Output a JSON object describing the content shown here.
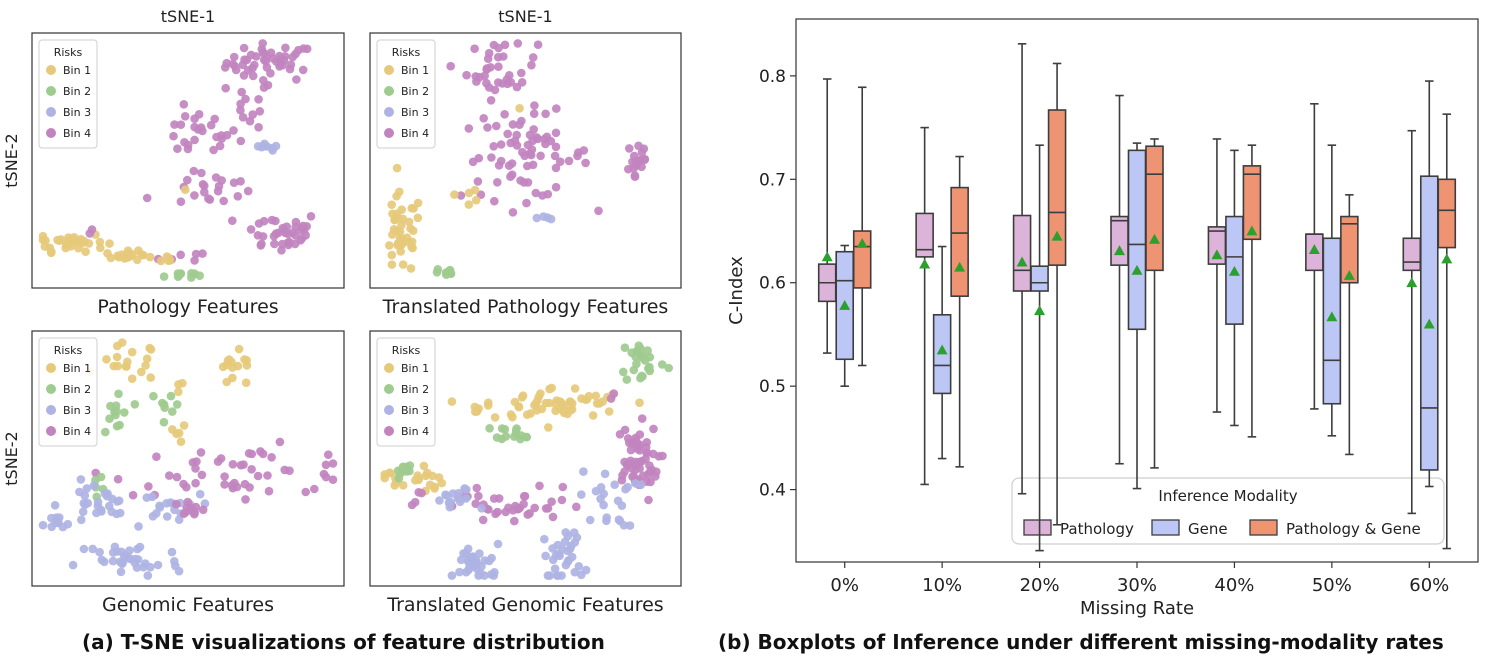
{
  "captions": {
    "left": "(a) T-SNE visualizations of feature distribution",
    "right": "(b) Boxplots of Inference under different missing-modality rates"
  },
  "colors": {
    "bin1": "#e6c97a",
    "bin2": "#9ecb8f",
    "bin3": "#aeb3e3",
    "bin4": "#c184bf",
    "pathology": "#dcb3d9",
    "gene": "#bcc7f5",
    "both": "#ee9473",
    "mean_marker": "#2ca02c",
    "box_edge": "#3d3d3d"
  },
  "chart_data": [
    {
      "type": "scatter",
      "title": "Pathology Features",
      "top_label": "tSNE-1",
      "ylabel": "tSNE-2",
      "legend": {
        "title": "Risks",
        "entries": [
          "Bin 1",
          "Bin 2",
          "Bin 3",
          "Bin 4"
        ],
        "placement": "top-left"
      },
      "clusters": [
        {
          "bin": 4,
          "cx": 0.78,
          "cy": 0.91,
          "sx": 0.075,
          "sy": 0.04,
          "n": 48
        },
        {
          "bin": 4,
          "cx": 0.71,
          "cy": 0.74,
          "sx": 0.04,
          "sy": 0.05,
          "n": 12
        },
        {
          "bin": 4,
          "cx": 0.53,
          "cy": 0.61,
          "sx": 0.07,
          "sy": 0.05,
          "n": 26
        },
        {
          "bin": 3,
          "cx": 0.76,
          "cy": 0.55,
          "sx": 0.025,
          "sy": 0.012,
          "n": 8
        },
        {
          "bin": 4,
          "cx": 0.59,
          "cy": 0.38,
          "sx": 0.06,
          "sy": 0.035,
          "n": 20
        },
        {
          "bin": 1,
          "cx": 0.49,
          "cy": 0.38,
          "sx": 0.01,
          "sy": 0.01,
          "n": 1
        },
        {
          "bin": 4,
          "cx": 0.37,
          "cy": 0.35,
          "sx": 0.005,
          "sy": 0.005,
          "n": 1
        },
        {
          "bin": 4,
          "cx": 0.81,
          "cy": 0.2,
          "sx": 0.07,
          "sy": 0.045,
          "n": 38
        },
        {
          "bin": 4,
          "cx": 0.53,
          "cy": 0.1,
          "sx": 0.06,
          "sy": 0.015,
          "n": 6
        },
        {
          "bin": 1,
          "cx": 0.1,
          "cy": 0.16,
          "sx": 0.06,
          "sy": 0.02,
          "n": 32
        },
        {
          "bin": 4,
          "cx": 0.17,
          "cy": 0.2,
          "sx": 0.01,
          "sy": 0.01,
          "n": 2
        },
        {
          "bin": 1,
          "cx": 0.3,
          "cy": 0.1,
          "sx": 0.04,
          "sy": 0.01,
          "n": 20
        },
        {
          "bin": 1,
          "cx": 0.43,
          "cy": 0.09,
          "sx": 0.012,
          "sy": 0.01,
          "n": 4
        },
        {
          "bin": 2,
          "cx": 0.47,
          "cy": 0.02,
          "sx": 0.025,
          "sy": 0.008,
          "n": 10
        }
      ]
    },
    {
      "type": "scatter",
      "title": "Translated Pathology Features",
      "top_label": "tSNE-1",
      "ylabel": "",
      "legend": {
        "title": "Risks",
        "entries": [
          "Bin 1",
          "Bin 2",
          "Bin 3",
          "Bin 4"
        ],
        "placement": "top-left"
      },
      "clusters": [
        {
          "bin": 4,
          "cx": 0.42,
          "cy": 0.88,
          "sx": 0.06,
          "sy": 0.06,
          "n": 36
        },
        {
          "bin": 1,
          "cx": 0.47,
          "cy": 0.72,
          "sx": 0.01,
          "sy": 0.01,
          "n": 1
        },
        {
          "bin": 4,
          "cx": 0.5,
          "cy": 0.52,
          "sx": 0.11,
          "sy": 0.09,
          "n": 70
        },
        {
          "bin": 4,
          "cx": 0.88,
          "cy": 0.5,
          "sx": 0.02,
          "sy": 0.06,
          "n": 18
        },
        {
          "bin": 1,
          "cx": 0.31,
          "cy": 0.36,
          "sx": 0.025,
          "sy": 0.04,
          "n": 5
        },
        {
          "bin": 3,
          "cx": 0.57,
          "cy": 0.26,
          "sx": 0.015,
          "sy": 0.01,
          "n": 4
        },
        {
          "bin": 1,
          "cx": 0.08,
          "cy": 0.19,
          "sx": 0.035,
          "sy": 0.085,
          "n": 40
        },
        {
          "bin": 2,
          "cx": 0.23,
          "cy": 0.03,
          "sx": 0.02,
          "sy": 0.01,
          "n": 9
        }
      ]
    },
    {
      "type": "scatter",
      "title": "Genomic Features",
      "ylabel": "tSNE-2",
      "legend": {
        "title": "Risks",
        "entries": [
          "Bin 1",
          "Bin 2",
          "Bin 3",
          "Bin 4"
        ],
        "placement": "top-left"
      },
      "clusters": [
        {
          "bin": 1,
          "cx": 0.3,
          "cy": 0.9,
          "sx": 0.05,
          "sy": 0.04,
          "n": 18
        },
        {
          "bin": 1,
          "cx": 0.66,
          "cy": 0.86,
          "sx": 0.04,
          "sy": 0.04,
          "n": 14
        },
        {
          "bin": 1,
          "cx": 0.49,
          "cy": 0.83,
          "sx": 0.01,
          "sy": 0.02,
          "n": 3
        },
        {
          "bin": 2,
          "cx": 0.26,
          "cy": 0.68,
          "sx": 0.025,
          "sy": 0.07,
          "n": 12
        },
        {
          "bin": 2,
          "cx": 0.44,
          "cy": 0.72,
          "sx": 0.02,
          "sy": 0.04,
          "n": 8
        },
        {
          "bin": 1,
          "cx": 0.47,
          "cy": 0.6,
          "sx": 0.015,
          "sy": 0.02,
          "n": 5
        },
        {
          "bin": 4,
          "cx": 0.68,
          "cy": 0.45,
          "sx": 0.22,
          "sy": 0.05,
          "n": 50
        },
        {
          "bin": 2,
          "cx": 0.2,
          "cy": 0.4,
          "sx": 0.015,
          "sy": 0.015,
          "n": 5
        },
        {
          "bin": 3,
          "cx": 0.19,
          "cy": 0.3,
          "sx": 0.06,
          "sy": 0.05,
          "n": 28
        },
        {
          "bin": 3,
          "cx": 0.44,
          "cy": 0.3,
          "sx": 0.05,
          "sy": 0.025,
          "n": 18
        },
        {
          "bin": 4,
          "cx": 0.5,
          "cy": 0.29,
          "sx": 0.04,
          "sy": 0.02,
          "n": 10
        },
        {
          "bin": 3,
          "cx": 0.05,
          "cy": 0.22,
          "sx": 0.03,
          "sy": 0.02,
          "n": 10
        },
        {
          "bin": 3,
          "cx": 0.3,
          "cy": 0.07,
          "sx": 0.09,
          "sy": 0.045,
          "n": 36
        }
      ]
    },
    {
      "type": "scatter",
      "title": "Translated Genomic Features",
      "ylabel": "",
      "legend": {
        "title": "Risks",
        "entries": [
          "Bin 1",
          "Bin 2",
          "Bin 3",
          "Bin 4"
        ],
        "placement": "top-left"
      },
      "clusters": [
        {
          "bin": 2,
          "cx": 0.9,
          "cy": 0.91,
          "sx": 0.04,
          "sy": 0.05,
          "n": 24
        },
        {
          "bin": 1,
          "cx": 0.6,
          "cy": 0.73,
          "sx": 0.12,
          "sy": 0.035,
          "n": 55
        },
        {
          "bin": 4,
          "cx": 0.81,
          "cy": 0.76,
          "sx": 0.008,
          "sy": 0.008,
          "n": 2
        },
        {
          "bin": 1,
          "cx": 0.33,
          "cy": 0.71,
          "sx": 0.02,
          "sy": 0.015,
          "n": 4
        },
        {
          "bin": 2,
          "cx": 0.47,
          "cy": 0.61,
          "sx": 0.035,
          "sy": 0.015,
          "n": 14
        },
        {
          "bin": 4,
          "cx": 0.87,
          "cy": 0.48,
          "sx": 0.04,
          "sy": 0.08,
          "n": 55
        },
        {
          "bin": 3,
          "cx": 0.78,
          "cy": 0.33,
          "sx": 0.05,
          "sy": 0.06,
          "n": 22
        },
        {
          "bin": 1,
          "cx": 0.12,
          "cy": 0.42,
          "sx": 0.05,
          "sy": 0.035,
          "n": 24
        },
        {
          "bin": 2,
          "cx": 0.08,
          "cy": 0.45,
          "sx": 0.02,
          "sy": 0.015,
          "n": 8
        },
        {
          "bin": 4,
          "cx": 0.43,
          "cy": 0.3,
          "sx": 0.14,
          "sy": 0.04,
          "n": 42
        },
        {
          "bin": 3,
          "cx": 0.26,
          "cy": 0.32,
          "sx": 0.04,
          "sy": 0.03,
          "n": 14
        },
        {
          "bin": 3,
          "cx": 0.34,
          "cy": 0.06,
          "sx": 0.04,
          "sy": 0.04,
          "n": 32
        },
        {
          "bin": 3,
          "cx": 0.63,
          "cy": 0.09,
          "sx": 0.035,
          "sy": 0.06,
          "n": 32
        }
      ]
    },
    {
      "type": "box",
      "xlabel": "Missing Rate",
      "ylabel": "C-Index",
      "categories": [
        "0%",
        "10%",
        "20%",
        "30%",
        "40%",
        "50%",
        "60%"
      ],
      "yticks": [
        0.4,
        0.5,
        0.6,
        0.7,
        0.8
      ],
      "ylim": [
        0.33,
        0.855
      ],
      "legend": {
        "title": "Inference Modality",
        "placement": "lower-right"
      },
      "series": [
        {
          "name": "Pathology",
          "boxes": [
            {
              "whislo": 0.532,
              "q1": 0.582,
              "med": 0.6,
              "q3": 0.618,
              "whishi": 0.797,
              "mean": 0.625
            },
            {
              "whislo": 0.405,
              "q1": 0.625,
              "med": 0.632,
              "q3": 0.667,
              "whishi": 0.75,
              "mean": 0.618
            },
            {
              "whislo": 0.396,
              "q1": 0.592,
              "med": 0.612,
              "q3": 0.665,
              "whishi": 0.831,
              "mean": 0.62
            },
            {
              "whislo": 0.425,
              "q1": 0.617,
              "med": 0.66,
              "q3": 0.664,
              "whishi": 0.781,
              "mean": 0.631
            },
            {
              "whislo": 0.475,
              "q1": 0.618,
              "med": 0.65,
              "q3": 0.654,
              "whishi": 0.739,
              "mean": 0.627
            },
            {
              "whislo": 0.478,
              "q1": 0.612,
              "med": 0.647,
              "q3": 0.647,
              "whishi": 0.773,
              "mean": 0.632
            },
            {
              "whislo": 0.377,
              "q1": 0.612,
              "med": 0.62,
              "q3": 0.643,
              "whishi": 0.747,
              "mean": 0.6
            }
          ]
        },
        {
          "name": "Gene",
          "boxes": [
            {
              "whislo": 0.5,
              "q1": 0.526,
              "med": 0.602,
              "q3": 0.63,
              "whishi": 0.636,
              "mean": 0.578
            },
            {
              "whislo": 0.43,
              "q1": 0.493,
              "med": 0.52,
              "q3": 0.569,
              "whishi": 0.635,
              "mean": 0.535
            },
            {
              "whislo": 0.341,
              "q1": 0.592,
              "med": 0.6,
              "q3": 0.616,
              "whishi": 0.733,
              "mean": 0.573
            },
            {
              "whislo": 0.401,
              "q1": 0.555,
              "med": 0.637,
              "q3": 0.728,
              "whishi": 0.735,
              "mean": 0.612
            },
            {
              "whislo": 0.462,
              "q1": 0.56,
              "med": 0.625,
              "q3": 0.664,
              "whishi": 0.728,
              "mean": 0.611
            },
            {
              "whislo": 0.452,
              "q1": 0.483,
              "med": 0.525,
              "q3": 0.643,
              "whishi": 0.733,
              "mean": 0.567
            },
            {
              "whislo": 0.403,
              "q1": 0.419,
              "med": 0.479,
              "q3": 0.703,
              "whishi": 0.795,
              "mean": 0.56
            }
          ]
        },
        {
          "name": "Pathology & Gene",
          "boxes": [
            {
              "whislo": 0.52,
              "q1": 0.595,
              "med": 0.635,
              "q3": 0.65,
              "whishi": 0.789,
              "mean": 0.638
            },
            {
              "whislo": 0.422,
              "q1": 0.587,
              "med": 0.648,
              "q3": 0.692,
              "whishi": 0.722,
              "mean": 0.615
            },
            {
              "whislo": 0.366,
              "q1": 0.617,
              "med": 0.668,
              "q3": 0.767,
              "whishi": 0.812,
              "mean": 0.645
            },
            {
              "whislo": 0.421,
              "q1": 0.612,
              "med": 0.705,
              "q3": 0.732,
              "whishi": 0.739,
              "mean": 0.642
            },
            {
              "whislo": 0.451,
              "q1": 0.642,
              "med": 0.705,
              "q3": 0.713,
              "whishi": 0.733,
              "mean": 0.65
            },
            {
              "whislo": 0.434,
              "q1": 0.6,
              "med": 0.657,
              "q3": 0.664,
              "whishi": 0.685,
              "mean": 0.607
            },
            {
              "whislo": 0.343,
              "q1": 0.634,
              "med": 0.67,
              "q3": 0.7,
              "whishi": 0.763,
              "mean": 0.623
            }
          ]
        }
      ]
    }
  ]
}
